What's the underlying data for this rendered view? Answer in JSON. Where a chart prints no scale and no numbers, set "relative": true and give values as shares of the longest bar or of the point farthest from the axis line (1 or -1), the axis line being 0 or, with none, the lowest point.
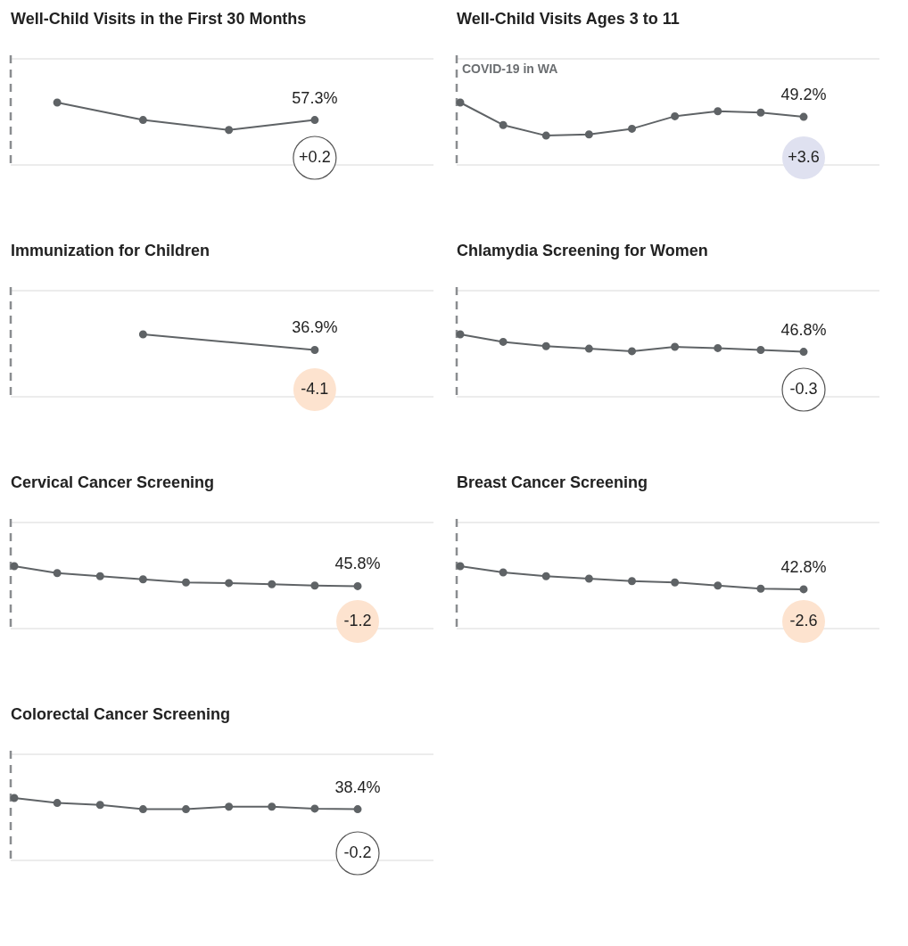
{
  "chart_data": [
    {
      "type": "line",
      "title": "Well-Child Visits in the First 30 Months",
      "relative": true,
      "marker": "circle",
      "categories": [
        null,
        null,
        null,
        null,
        null,
        null,
        null,
        null,
        null
      ],
      "series": [
        {
          "color": "#5f6366",
          "values": [
            null,
            1,
            null,
            0.72,
            null,
            0.56,
            null,
            0.72,
            null
          ]
        }
      ],
      "annotations": [
        "57.3%",
        "+0.2"
      ]
    },
    {
      "type": "line",
      "title": "Well-Child Visits Ages 3 to 11",
      "relative": true,
      "marker": "circle",
      "categories": [
        null,
        null,
        null,
        null,
        null,
        null,
        null,
        null,
        null
      ],
      "series": [
        {
          "color": "#5f6366",
          "values": [
            1,
            0.64,
            0.47,
            0.49,
            0.58,
            0.78,
            0.86,
            0.84,
            0.77
          ]
        }
      ],
      "annotations": [
        "COVID-19 in WA",
        "49.2%",
        "+3.6"
      ]
    },
    {
      "type": "line",
      "title": "Immunization for Children",
      "relative": true,
      "marker": "circle",
      "categories": [
        null,
        null,
        null,
        null,
        null,
        null,
        null,
        null,
        null
      ],
      "series": [
        {
          "color": "#5f6366",
          "values": [
            null,
            null,
            null,
            1,
            null,
            null,
            null,
            0.75,
            null
          ]
        }
      ],
      "annotations": [
        "36.9%",
        "-4.1"
      ]
    },
    {
      "type": "line",
      "title": "Chlamydia Screening for Women",
      "relative": true,
      "marker": "circle",
      "categories": [
        null,
        null,
        null,
        null,
        null,
        null,
        null,
        null,
        null
      ],
      "series": [
        {
          "color": "#5f6366",
          "values": [
            1,
            0.88,
            0.81,
            0.77,
            0.73,
            0.8,
            0.78,
            0.75,
            0.72
          ]
        }
      ],
      "annotations": [
        "46.8%",
        "-0.3"
      ]
    },
    {
      "type": "line",
      "title": "Cervical Cancer Screening",
      "relative": true,
      "marker": "circle",
      "categories": [
        null,
        null,
        null,
        null,
        null,
        null,
        null,
        null,
        null
      ],
      "series": [
        {
          "color": "#5f6366",
          "values": [
            1,
            0.89,
            0.84,
            0.79,
            0.74,
            0.73,
            0.71,
            0.69,
            0.68
          ]
        }
      ],
      "annotations": [
        "45.8%",
        "-1.2"
      ]
    },
    {
      "type": "line",
      "title": "Breast Cancer Screening",
      "relative": true,
      "marker": "circle",
      "categories": [
        null,
        null,
        null,
        null,
        null,
        null,
        null,
        null,
        null
      ],
      "series": [
        {
          "color": "#5f6366",
          "values": [
            1,
            0.9,
            0.84,
            0.8,
            0.76,
            0.74,
            0.69,
            0.64,
            0.63
          ]
        }
      ],
      "annotations": [
        "42.8%",
        "-2.6"
      ]
    },
    {
      "type": "line",
      "title": "Colorectal Cancer Screening",
      "relative": true,
      "marker": "circle",
      "categories": [
        null,
        null,
        null,
        null,
        null,
        null,
        null,
        null,
        null
      ],
      "series": [
        {
          "color": "#5f6366",
          "values": [
            1,
            0.92,
            0.89,
            0.82,
            0.82,
            0.86,
            0.86,
            0.83,
            0.82
          ]
        }
      ],
      "annotations": [
        "38.4%",
        "-0.2"
      ]
    }
  ]
}
